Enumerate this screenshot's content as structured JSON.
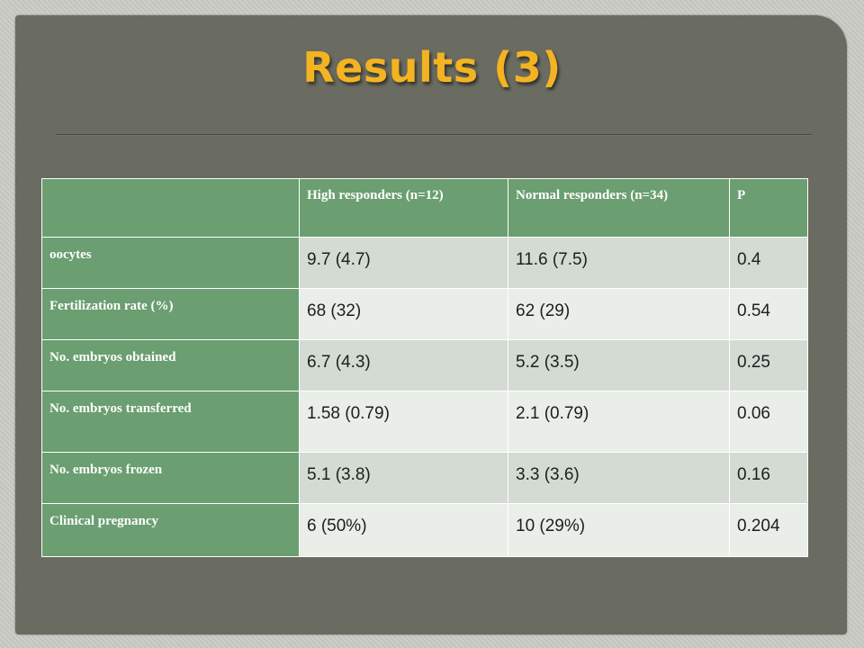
{
  "slide": {
    "title": "Results (3)"
  },
  "table": {
    "header": {
      "corner": "",
      "col1": "High responders (n=12)",
      "col2": "Normal responders (n=34)",
      "col3": "P"
    },
    "rows": [
      {
        "label": "oocytes",
        "high": "9.7 (4.7)",
        "normal": "11.6 (7.5)",
        "p": "0.4"
      },
      {
        "label": "Fertilization rate (%)",
        "high": "68 (32)",
        "normal": "62 (29)",
        "p": "0.54"
      },
      {
        "label": "No. embryos obtained",
        "high": "6.7 (4.3)",
        "normal": "5.2 (3.5)",
        "p": "0.25"
      },
      {
        "label": "No. embryos transferred",
        "high": "1.58 (0.79)",
        "normal": "2.1 (0.79)",
        "p": "0.06"
      },
      {
        "label": "No. embryos frozen",
        "high": "5.1 (3.8)",
        "normal": "3.3 (3.6)",
        "p": "0.16"
      },
      {
        "label": "Clinical pregnancy",
        "high": "6 (50%)",
        "normal": "10 (29%)",
        "p": "0.204"
      }
    ]
  },
  "colors": {
    "title": "#f4b321",
    "background": "#6a6b61",
    "header_fill": "#6b9e71",
    "row_fill_odd": "#d3dbd2",
    "row_fill_even": "#eaeee9"
  }
}
